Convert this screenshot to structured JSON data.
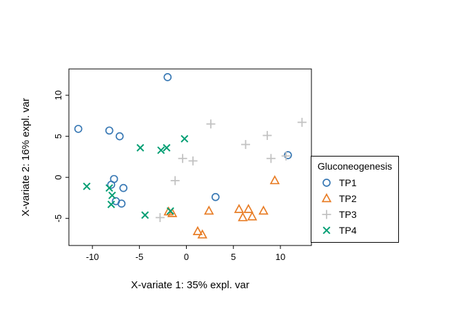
{
  "figure": {
    "background": "#ffffff",
    "plot_border_color": "#000000"
  },
  "chart_data": {
    "type": "scatter",
    "title": "",
    "xlabel": "X-variate 1: 35% expl. var",
    "ylabel": "X-variate 2: 16% expl. var",
    "xlim": [
      -12.5,
      13.3
    ],
    "ylim": [
      -8.3,
      13.2
    ],
    "xticks": [
      -10,
      -5,
      0,
      5,
      10
    ],
    "yticks": [
      -5,
      0,
      5,
      10
    ],
    "grid": false,
    "legend": {
      "title": "Gluconeogenesis",
      "position": "right"
    },
    "series": [
      {
        "name": "TP1",
        "marker": "circle",
        "color": "#3878B4",
        "points": [
          [
            -11.5,
            5.9
          ],
          [
            -8.2,
            5.7
          ],
          [
            -7.1,
            5.0
          ],
          [
            -2.0,
            12.2
          ],
          [
            -7.7,
            -0.2
          ],
          [
            -8.0,
            -0.9
          ],
          [
            -6.7,
            -1.3
          ],
          [
            -7.5,
            -2.9
          ],
          [
            -6.9,
            -3.2
          ],
          [
            3.1,
            -2.4
          ],
          [
            10.8,
            2.7
          ]
        ]
      },
      {
        "name": "TP2",
        "marker": "triangle",
        "color": "#E87D26",
        "points": [
          [
            -1.9,
            -4.2
          ],
          [
            -1.5,
            -4.4
          ],
          [
            2.4,
            -4.1
          ],
          [
            1.2,
            -6.6
          ],
          [
            1.7,
            -7.0
          ],
          [
            5.6,
            -3.9
          ],
          [
            6.6,
            -3.9
          ],
          [
            6.0,
            -4.9
          ],
          [
            7.0,
            -4.8
          ],
          [
            8.2,
            -4.1
          ],
          [
            9.4,
            -0.4
          ]
        ]
      },
      {
        "name": "TP3",
        "marker": "plus",
        "color": "#C2C2C2",
        "points": [
          [
            2.6,
            6.5
          ],
          [
            -0.4,
            2.3
          ],
          [
            0.7,
            2.0
          ],
          [
            -1.2,
            -0.4
          ],
          [
            6.3,
            4.0
          ],
          [
            8.6,
            5.1
          ],
          [
            9.0,
            2.3
          ],
          [
            10.6,
            2.6
          ],
          [
            12.3,
            6.7
          ],
          [
            -2.8,
            -4.9
          ]
        ]
      },
      {
        "name": "TP4",
        "marker": "x",
        "color": "#009E73",
        "points": [
          [
            -10.6,
            -1.1
          ],
          [
            -8.2,
            -1.3
          ],
          [
            -7.9,
            -2.2
          ],
          [
            -8.0,
            -3.3
          ],
          [
            -4.9,
            3.6
          ],
          [
            -2.7,
            3.3
          ],
          [
            -2.1,
            3.6
          ],
          [
            -0.2,
            4.7
          ],
          [
            -4.4,
            -4.6
          ],
          [
            -1.7,
            -4.1
          ]
        ]
      }
    ]
  }
}
